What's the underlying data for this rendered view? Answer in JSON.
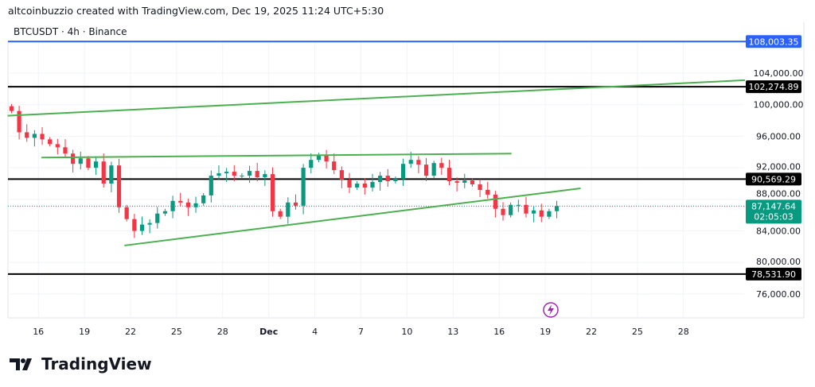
{
  "header": {
    "credit": "altcoinbuzzio created with TradingView.com, Dec 19, 2025 11:24 UTC+5:30",
    "symbol": "BTCUSDT · 4h · Binance"
  },
  "logo": {
    "text": "TradingView",
    "mark": "TV"
  },
  "colors": {
    "up": "#089981",
    "down": "#f23645",
    "trend": "#4caf50",
    "blue": "#2962ff",
    "black": "#000000",
    "current": "#089981",
    "lightning": "#9c27b0"
  },
  "chart_data": {
    "type": "candlestick",
    "title": "BTCUSDT · 4h · Binance",
    "start_date": "Nov 14",
    "candle_interval_days": 0.5,
    "closes": [
      99200,
      96500,
      95800,
      96300,
      95600,
      95000,
      94600,
      93800,
      92500,
      93200,
      92000,
      92800,
      90000,
      92300,
      87000,
      85500,
      84000,
      84800,
      85000,
      86200,
      86500,
      87800,
      87600,
      87000,
      87500,
      88500,
      91000,
      91300,
      91500,
      91000,
      91000,
      91600,
      90800,
      91200,
      86500,
      85800,
      87600,
      87200,
      92000,
      93000,
      93600,
      92800,
      91700,
      90500,
      89500,
      90000,
      89500,
      90200,
      91000,
      90300,
      90600,
      92500,
      93000,
      92400,
      91000,
      92600,
      92000,
      90300,
      90100,
      90400,
      89900,
      89200,
      88600,
      86800,
      86000,
      87300,
      87300,
      86200,
      86600,
      85800,
      86500,
      87147.64
    ],
    "first_open": 99800,
    "ylim": [
      74000,
      110000
    ],
    "y_ticks": [
      "104,000.00",
      "100,000.00",
      "96,000.00",
      "92,000.00",
      "88,000.00",
      "84,000.00",
      "80,000.00",
      "76,000.00"
    ],
    "y_tick_values": [
      104000,
      100000,
      96000,
      92000,
      88000,
      84000,
      80000,
      76000
    ],
    "x_ticks": [
      {
        "label": "16",
        "day": 2
      },
      {
        "label": "19",
        "day": 5
      },
      {
        "label": "22",
        "day": 8
      },
      {
        "label": "25",
        "day": 11
      },
      {
        "label": "28",
        "day": 14
      },
      {
        "label": "Dec",
        "day": 17
      },
      {
        "label": "4",
        "day": 20
      },
      {
        "label": "7",
        "day": 23
      },
      {
        "label": "10",
        "day": 26
      },
      {
        "label": "13",
        "day": 29
      },
      {
        "label": "16",
        "day": 32
      },
      {
        "label": "19",
        "day": 35
      },
      {
        "label": "22",
        "day": 38
      },
      {
        "label": "25",
        "day": 41
      },
      {
        "label": "28",
        "day": 44
      }
    ],
    "horizontal_levels": [
      {
        "value": 108003.35,
        "label": "108,003.35",
        "color": "blue"
      },
      {
        "value": 102274.89,
        "label": "102,274.89",
        "color": "black"
      },
      {
        "value": 90569.29,
        "label": "90,569.29",
        "color": "black"
      },
      {
        "value": 78531.9,
        "label": "78,531.90",
        "color": "black"
      }
    ],
    "current_price": {
      "value": 87147.64,
      "label": "87,147.64",
      "countdown": "02:05:03"
    },
    "trendlines": [
      {
        "from": [
          0,
          98600
        ],
        "to": [
          48,
          103100
        ]
      },
      {
        "from": [
          2.2,
          93300
        ],
        "to": [
          32.8,
          93800
        ]
      },
      {
        "from": [
          7.6,
          82150
        ],
        "to": [
          37.3,
          89400
        ]
      }
    ]
  }
}
